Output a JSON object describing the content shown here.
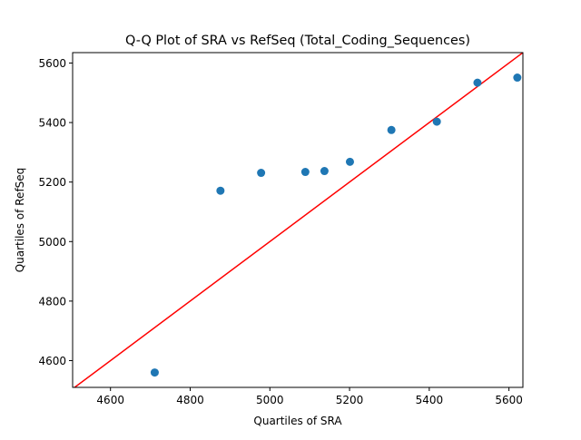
{
  "chart_data": {
    "type": "scatter",
    "title": "Q-Q Plot of SRA vs RefSeq (Total_Coding_Sequences)",
    "xlabel": "Quartiles of SRA",
    "ylabel": "Quartiles of RefSeq",
    "xlim": [
      4505,
      5635
    ],
    "ylim": [
      4510,
      5635
    ],
    "xticks": [
      4600,
      4800,
      5000,
      5200,
      5400,
      5600
    ],
    "yticks": [
      4600,
      4800,
      5000,
      5200,
      5400,
      5600
    ],
    "xtick_labels": [
      "4600",
      "4800",
      "5000",
      "5200",
      "5400",
      "5600"
    ],
    "ytick_labels": [
      "4600",
      "4800",
      "5000",
      "5200",
      "5400",
      "5600"
    ],
    "grid": false,
    "legend": null,
    "series": [
      {
        "color": "#1f77b4",
        "marker": "circle",
        "x": [
          4711,
          4876,
          4978,
          5089,
          5137,
          5201,
          5305,
          5419,
          5521,
          5621
        ],
        "y": [
          4560,
          5171,
          5231,
          5234,
          5237,
          5268,
          5375,
          5403,
          5534,
          5551
        ]
      }
    ],
    "reference_line": {
      "type": "y=x",
      "color": "#ff0000"
    }
  }
}
